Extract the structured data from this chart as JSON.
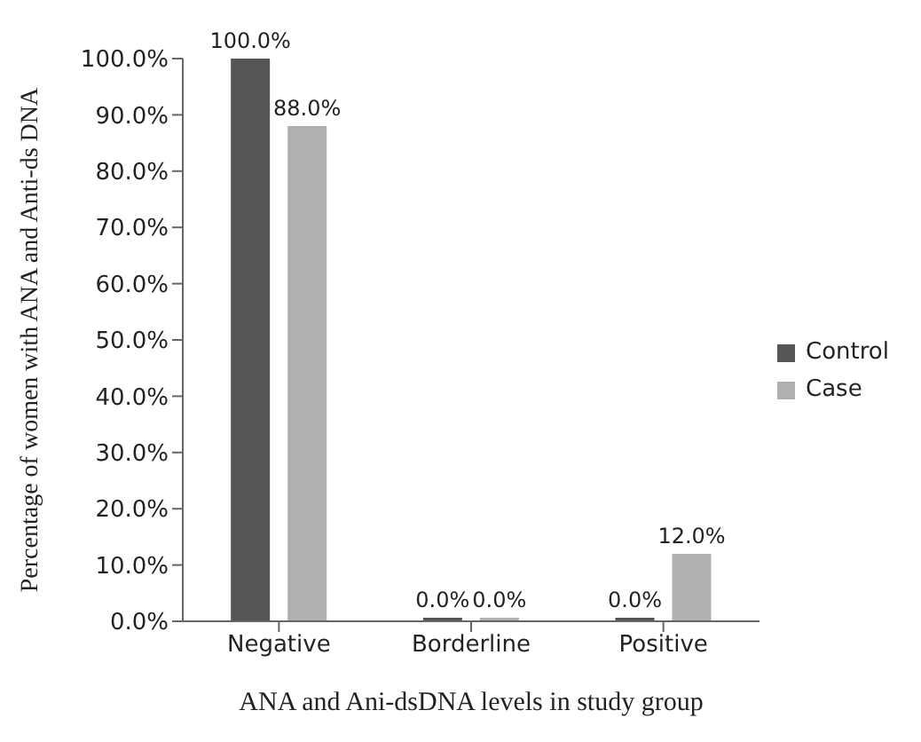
{
  "chart_data": {
    "type": "bar",
    "xlabel": "ANA and Ani-dsDNA levels in study group",
    "ylabel": "Percentage of women with ANA and Anti-ds DNA",
    "categories": [
      "Negative",
      "Borderline",
      "Positive"
    ],
    "series": [
      {
        "name": "Control",
        "color": "#555555",
        "values": [
          100,
          0,
          0
        ],
        "value_labels": [
          "100.0%",
          "0.0%",
          "0.0%"
        ]
      },
      {
        "name": "Case",
        "color": "#b0b0b0",
        "values": [
          88,
          0,
          12
        ],
        "value_labels": [
          "88.0%",
          "0.0%",
          "12.0%"
        ]
      }
    ],
    "ylim": [
      0,
      100
    ],
    "yticks": [
      {
        "value": 0,
        "label": "0.0%"
      },
      {
        "value": 10,
        "label": "10.0%"
      },
      {
        "value": 20,
        "label": "20.0%"
      },
      {
        "value": 30,
        "label": "30.0%"
      },
      {
        "value": 40,
        "label": "40.0%"
      },
      {
        "value": 50,
        "label": "50.0%"
      },
      {
        "value": 60,
        "label": "60.0%"
      },
      {
        "value": 70,
        "label": "70.0%"
      },
      {
        "value": 80,
        "label": "80.0%"
      },
      {
        "value": 90,
        "label": "90.0%"
      },
      {
        "value": 100,
        "label": "100.0%"
      }
    ],
    "legend": "right",
    "grid": false
  }
}
